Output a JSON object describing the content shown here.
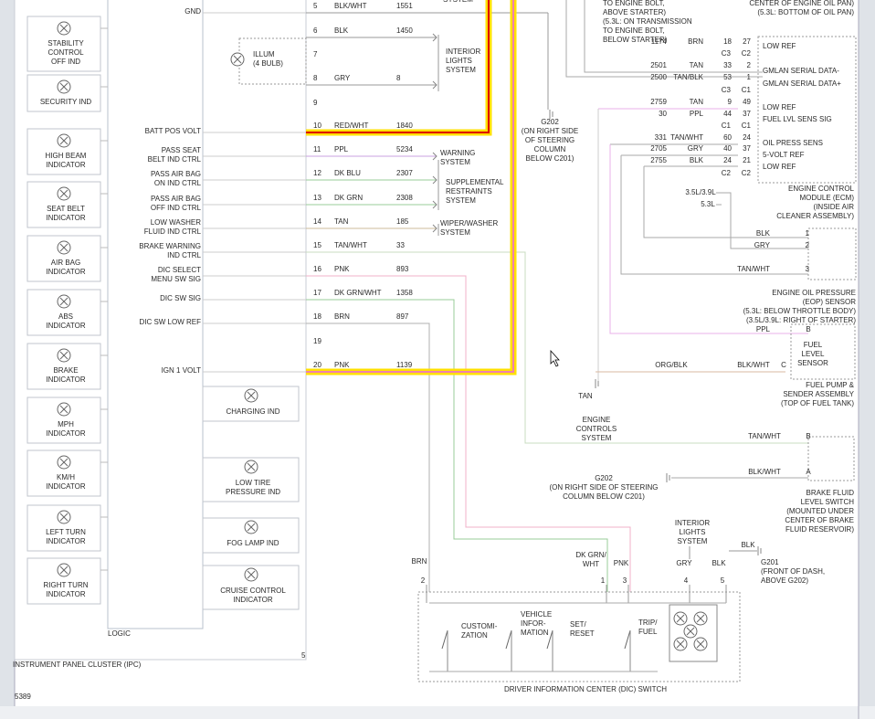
{
  "diagram_number": "5389",
  "ipc": {
    "title": "INSTRUMENT PANEL CLUSTER (IPC)",
    "logic": "LOGIC",
    "lower_pin": "5",
    "indicators": [
      [
        "STABILITY",
        "CONTROL",
        "OFF IND"
      ],
      [
        "SECURITY IND"
      ],
      [
        "HIGH BEAM",
        "INDICATOR"
      ],
      [
        "SEAT BELT",
        "INDICATOR"
      ],
      [
        "AIR BAG",
        "INDICATOR"
      ],
      [
        "ABS",
        "INDICATOR"
      ],
      [
        "BRAKE",
        "INDICATOR"
      ],
      [
        "MPH",
        "INDICATOR"
      ],
      [
        "KM/H",
        "INDICATOR"
      ],
      [
        "LEFT TURN",
        "INDICATOR"
      ],
      [
        "RIGHT TURN",
        "INDICATOR"
      ]
    ],
    "illum": [
      "ILLUM",
      "(4 BULB)"
    ],
    "lamps": [
      [
        "CHARGING IND"
      ],
      [
        "LOW TIRE",
        "PRESSURE IND"
      ],
      [
        "FOG LAMP IND"
      ],
      [
        "CRUISE CONTROL",
        "INDICATOR"
      ]
    ],
    "pins": [
      {
        "pin": 5,
        "wire": "BLK/WHT",
        "circuit": 1551,
        "signal": [
          "GND"
        ]
      },
      {
        "pin": 6,
        "wire": "BLK",
        "circuit": 1450
      },
      {
        "pin": 7
      },
      {
        "pin": 8,
        "wire": "GRY",
        "circuit": 8
      },
      {
        "pin": 9
      },
      {
        "pin": 10,
        "wire": "RED/WHT",
        "circuit": 1840,
        "signal": [
          "BATT POS VOLT"
        ]
      },
      {
        "pin": 11,
        "wire": "PPL",
        "circuit": 5234,
        "signal": [
          "PASS SEAT",
          "BELT IND CTRL"
        ]
      },
      {
        "pin": 12,
        "wire": "DK BLU",
        "circuit": 2307,
        "signal": [
          "PASS AIR BAG",
          "ON IND CTRL"
        ]
      },
      {
        "pin": 13,
        "wire": "DK GRN",
        "circuit": 2308,
        "signal": [
          "PASS AIR BAG",
          "OFF IND CTRL"
        ]
      },
      {
        "pin": 14,
        "wire": "TAN",
        "circuit": 185,
        "signal": [
          "LOW WASHER",
          "FLUID IND CTRL"
        ]
      },
      {
        "pin": 15,
        "wire": "TAN/WHT",
        "circuit": 33,
        "signal": [
          "BRAKE WARNING",
          "IND CTRL"
        ]
      },
      {
        "pin": 16,
        "wire": "PNK",
        "circuit": 893,
        "signal": [
          "DIC SELECT",
          "MENU SW SIG"
        ]
      },
      {
        "pin": 17,
        "wire": "DK GRN/WHT",
        "circuit": 1358,
        "signal": [
          "DIC SW SIG"
        ]
      },
      {
        "pin": 18,
        "wire": "BRN",
        "circuit": 897,
        "signal": [
          "DIC SW LOW REF"
        ]
      },
      {
        "pin": 19
      },
      {
        "pin": 20,
        "wire": "PNK",
        "circuit": 1139,
        "signal": [
          "IGN 1 VOLT"
        ]
      }
    ]
  },
  "destinations": {
    "top": [
      "SYSTEM"
    ],
    "interior_lights": [
      "INTERIOR",
      "LIGHTS",
      "SYSTEM"
    ],
    "warning": [
      "WARNING",
      "SYSTEM"
    ],
    "restraints": [
      "SUPPLEMENTAL",
      "RESTRAINTS",
      "SYSTEM"
    ],
    "wiper": [
      "WIPER/WASHER",
      "SYSTEM"
    ]
  },
  "g202_upper": [
    "G202",
    "(ON RIGHT SIDE",
    "OF STEERING",
    "COLUMN",
    "BELOW C201)"
  ],
  "ground_note": [
    "TO ENGINE BOLT,",
    "ABOVE STARTER)",
    "(5.3L: ON TRANSMISSION",
    "TO ENGINE BOLT,",
    "BELOW STARTER)"
  ],
  "oil_pan_note": [
    "CENTER OF ENGINE OIL PAN)",
    "(5.3L: BOTTOM OF OIL PAN)"
  ],
  "ecm": {
    "wires": [
      {
        "circuit": 1174,
        "wire": "BRN",
        "pins": [
          18,
          27
        ]
      },
      {
        "circuit": 2501,
        "wire": "TAN",
        "pins": [
          33,
          2
        ]
      },
      {
        "circuit": 2500,
        "wire": "TAN/BLK",
        "pins": [
          53,
          1
        ]
      },
      {
        "circuit": 2759,
        "wire": "TAN",
        "pins": [
          9,
          49
        ]
      },
      {
        "circuit": 30,
        "wire": "PPL",
        "pins": [
          44,
          37
        ]
      },
      {
        "circuit": 331,
        "wire": "TAN/WHT",
        "pins": [
          60,
          24
        ]
      },
      {
        "circuit": 2705,
        "wire": "GRY",
        "pins": [
          40,
          37
        ]
      },
      {
        "circuit": 2755,
        "wire": "BLK",
        "pins": [
          24,
          21
        ]
      }
    ],
    "connectors": [
      [
        "C3",
        "C2"
      ],
      [
        "C3",
        "C1"
      ],
      [
        "C1",
        "C1"
      ],
      [
        "C2",
        "C2"
      ]
    ],
    "signals": [
      "LOW REF",
      "GMLAN SERIAL DATA-",
      "GMLAN SERIAL DATA+",
      "LOW REF",
      "FUEL LVL SENS SIG",
      "OIL PRESS SENS",
      "5-VOLT REF",
      "LOW REF"
    ],
    "engines": [
      "3.5L/3.9L",
      "5.3L"
    ],
    "title": [
      "ENGINE CONTROL",
      "MODULE (ECM)",
      "(INSIDE AIR",
      "CLEANER ASSEMBLY)"
    ]
  },
  "eop": {
    "wires": [
      {
        "wire": "BLK",
        "pin": 1
      },
      {
        "wire": "GRY",
        "pin": 2
      },
      {
        "wire": "TAN/WHT",
        "pin": 3
      }
    ],
    "title": [
      "ENGINE OIL PRESSURE",
      "(EOP) SENSOR",
      "(5.3L: BELOW THROTTLE BODY)",
      "(3.5L/3.9L: RIGHT OF STARTER)"
    ]
  },
  "fuel": {
    "wire_in": "PPL",
    "pin_b": "B",
    "sensor": [
      "FUEL",
      "LEVEL",
      "SENSOR"
    ],
    "wire_org": "ORG/BLK",
    "wire_out": "BLK/WHT",
    "pin_c": "C",
    "ground": "TAN",
    "title": [
      "FUEL PUMP &",
      "SENDER ASSEMBLY",
      "(TOP OF FUEL TANK)"
    ]
  },
  "engine_controls": [
    "ENGINE",
    "CONTROLS",
    "SYSTEM"
  ],
  "brake_switch": {
    "wire_b": "TAN/WHT",
    "pin_b": "B",
    "wire_a": "BLK/WHT",
    "pin_a": "A",
    "title": [
      "BRAKE FLUID",
      "LEVEL SWITCH",
      "(MOUNTED UNDER",
      "CENTER OF BRAKE",
      "FLUID RESERVOIR)"
    ]
  },
  "g202_lower": [
    "G202",
    "(ON RIGHT SIDE OF STEERING",
    "COLUMN BELOW C201)"
  ],
  "dic": {
    "title": "DRIVER INFORMATION CENTER (DIC) SWITCH",
    "pins": [
      {
        "wire": [
          "BRN"
        ],
        "pin": 2
      },
      {
        "wire": [
          "DK GRN/",
          "WHT"
        ],
        "pin": 1
      },
      {
        "wire": [
          "PNK"
        ],
        "pin": 3
      },
      {
        "wire": [
          "GRY"
        ],
        "pin": 4
      },
      {
        "wire": [
          "BLK"
        ],
        "pin": 5
      }
    ],
    "switches": [
      [
        "CUSTOMI-",
        "ZATION"
      ],
      [
        "VEHICLE",
        "INFOR-",
        "MATION"
      ],
      [
        "SET/",
        "RESET"
      ],
      [
        "TRIP/",
        "FUEL"
      ]
    ],
    "interior_lights": [
      "INTERIOR",
      "LIGHTS",
      "SYSTEM"
    ],
    "ground_wire": "BLK",
    "ground": [
      "G201",
      "(FRONT OF DASH,",
      "ABOVE G202)"
    ]
  }
}
